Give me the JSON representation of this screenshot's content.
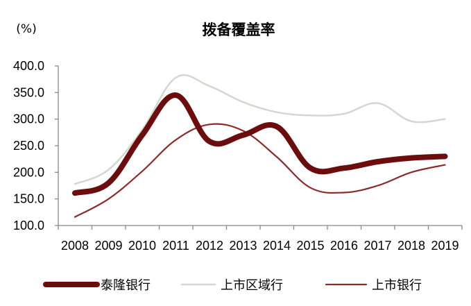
{
  "chart_data": {
    "type": "line",
    "title": "拨备覆盖率",
    "ylabel": "(%)",
    "xlabel": "",
    "categories": [
      "2008",
      "2009",
      "2010",
      "2011",
      "2012",
      "2013",
      "2014",
      "2015",
      "2016",
      "2017",
      "2018",
      "2019"
    ],
    "ylim": [
      100,
      400
    ],
    "yticks": [
      "400.0",
      "350.0",
      "300.0",
      "250.0",
      "200.0",
      "150.0",
      "100.0"
    ],
    "grid": false,
    "legend_position": "bottom",
    "series": [
      {
        "name": "泰隆银行",
        "color": "#6b0d0d",
        "values": [
          161,
          180,
          270,
          345,
          258,
          270,
          286,
          208,
          208,
          220,
          227,
          230
        ]
      },
      {
        "name": "上市区域行",
        "color": "#d6d6cf",
        "values": [
          178,
          205,
          280,
          378,
          362,
          332,
          313,
          307,
          310,
          330,
          296,
          300
        ]
      },
      {
        "name": "上市银行",
        "color": "#8e2a2a",
        "values": [
          116,
          150,
          202,
          261,
          290,
          278,
          229,
          171,
          162,
          175,
          200,
          214
        ]
      }
    ]
  }
}
